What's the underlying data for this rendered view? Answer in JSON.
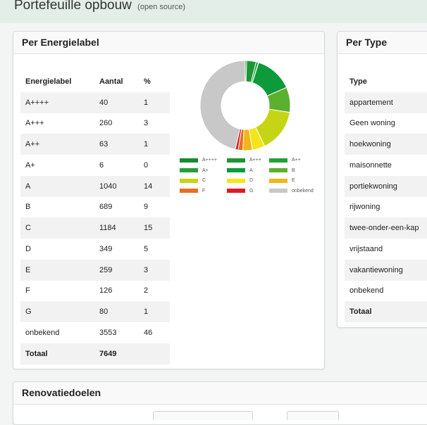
{
  "page": {
    "title": "Portefeuille opbouw",
    "subtitle": "(open source)"
  },
  "energielabel": {
    "title": "Per Energielabel",
    "headers": [
      "Energielabel",
      "Aantal",
      "%"
    ],
    "rows": [
      {
        "label": "A++++",
        "count": "40",
        "pct": "1",
        "color": "#1a8a2e"
      },
      {
        "label": "A+++",
        "count": "260",
        "pct": "3",
        "color": "#1e9633"
      },
      {
        "label": "A++",
        "count": "63",
        "pct": "1",
        "color": "#23a039"
      },
      {
        "label": "A+",
        "count": "6",
        "pct": "0",
        "color": "#23a039"
      },
      {
        "label": "A",
        "count": "1040",
        "pct": "14",
        "color": "#0d9a3a"
      },
      {
        "label": "B",
        "count": "689",
        "pct": "9",
        "color": "#5cb030"
      },
      {
        "label": "C",
        "count": "1184",
        "pct": "15",
        "color": "#c5d516"
      },
      {
        "label": "D",
        "count": "349",
        "pct": "5",
        "color": "#f2e61a"
      },
      {
        "label": "E",
        "count": "259",
        "pct": "3",
        "color": "#f2b51a"
      },
      {
        "label": "F",
        "count": "126",
        "pct": "2",
        "color": "#e86e1c"
      },
      {
        "label": "G",
        "count": "80",
        "pct": "1",
        "color": "#d91c25"
      },
      {
        "label": "onbekend",
        "count": "3553",
        "pct": "46",
        "color": "#c8c8c8"
      }
    ],
    "total": {
      "label": "Totaal",
      "count": "7649",
      "pct": ""
    }
  },
  "chart_data": {
    "type": "pie",
    "categories": [
      "A++++",
      "A+++",
      "A++",
      "A+",
      "A",
      "B",
      "C",
      "D",
      "E",
      "F",
      "G",
      "onbekend"
    ],
    "values": [
      40,
      260,
      63,
      6,
      1040,
      689,
      1184,
      349,
      259,
      126,
      80,
      3553
    ],
    "colors": [
      "#1a8a2e",
      "#1e9633",
      "#23a039",
      "#23a039",
      "#0d9a3a",
      "#5cb030",
      "#c5d516",
      "#f2e61a",
      "#f2b51a",
      "#e86e1c",
      "#d91c25",
      "#c8c8c8"
    ],
    "legend": "bottom"
  },
  "type": {
    "title": "Per Type",
    "header": "Type",
    "rows": [
      "appartement",
      "Geen woning",
      "hoekwoning",
      "maisonnette",
      "portiekwoning",
      "rijwoning",
      "twee-onder-een-kap",
      "vrijstaand",
      "vakantiewoning",
      "onbekend"
    ],
    "total": "Totaal"
  },
  "renovatie": {
    "title": "Renovatiedoelen"
  }
}
